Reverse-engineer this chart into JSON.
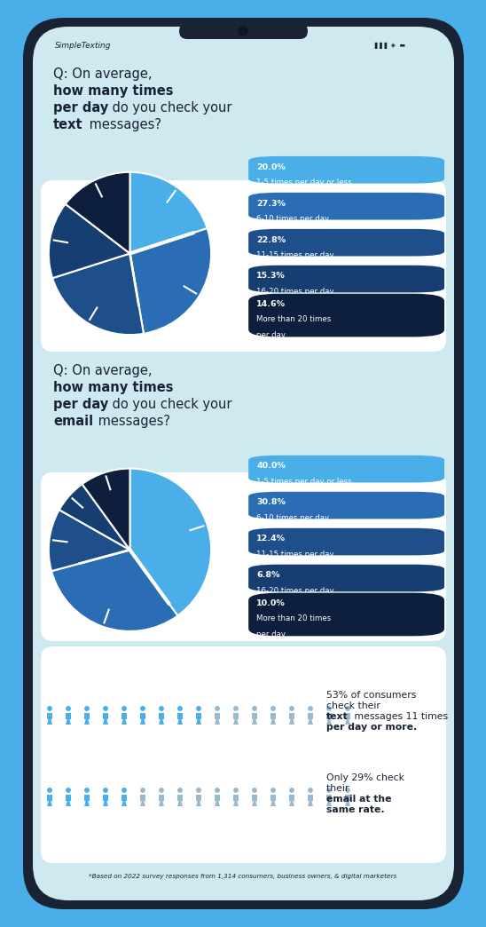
{
  "bg_color": "#4aaee8",
  "phone_bg": "#1a2333",
  "screen_bg": "#ceeaf0",
  "card_bg": "#ffffff",
  "q_card_bg": "#ceeaf0",
  "pie1_values": [
    20.0,
    27.3,
    22.8,
    15.3,
    14.6
  ],
  "pie1_colors": [
    "#4aaee8",
    "#2a6db5",
    "#1e4f8a",
    "#163e70",
    "#0d1f3c"
  ],
  "pie2_values": [
    40.0,
    30.8,
    12.4,
    6.8,
    10.0
  ],
  "pie2_colors": [
    "#4aaee8",
    "#2a6db5",
    "#1e4f8a",
    "#163e70",
    "#0d1f3c"
  ],
  "label_colors": [
    "#4aaee8",
    "#2a6db5",
    "#1e4f8a",
    "#163e70",
    "#0d1f3c"
  ],
  "pie1_labels": [
    [
      "20.0%",
      "1-5 times per day or less"
    ],
    [
      "27.3%",
      "6-10 times per day"
    ],
    [
      "22.8%",
      "11-15 times per day"
    ],
    [
      "15.3%",
      "16-20 times per day"
    ],
    [
      "14.6%",
      "More than 20 times",
      "per day"
    ]
  ],
  "pie2_labels": [
    [
      "40.0%",
      "1-5 times per day or less"
    ],
    [
      "30.8%",
      "6-10 times per day"
    ],
    [
      "12.4%",
      "11-15 times per day"
    ],
    [
      "6.8%",
      "16-20 times per day"
    ],
    [
      "10.0%",
      "More than 20 times",
      "per day"
    ]
  ],
  "stat1_colored": 9,
  "stat2_colored": 5,
  "stat_total": 17,
  "person_blue": "#4aaee8",
  "person_gray": "#9bb8cc",
  "footer": "*Based on 2022 survey responses from 1,314 consumers, business owners, & digital marketers",
  "brand": "SimpleTexting",
  "figure_width": 5.29,
  "figure_height": 10.24
}
